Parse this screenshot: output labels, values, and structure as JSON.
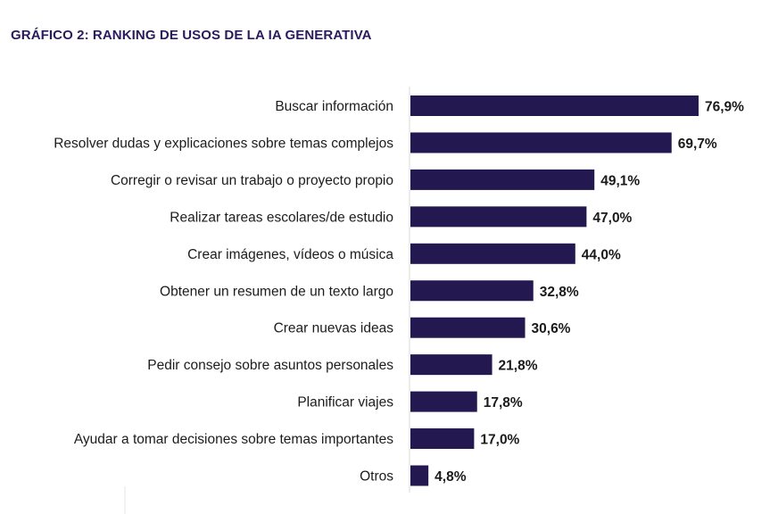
{
  "chart_data": {
    "type": "bar",
    "orientation": "horizontal",
    "title": "GRÁFICO 2: RANKING DE USOS DE LA IA GENERATIVA",
    "categories": [
      "Buscar información",
      "Resolver dudas y explicaciones sobre temas complejos",
      "Corregir o revisar un trabajo o proyecto propio",
      "Realizar tareas escolares/de estudio",
      "Crear imágenes, vídeos o música",
      "Obtener un resumen de un texto largo",
      "Crear nuevas ideas",
      "Pedir consejo sobre asuntos personales",
      "Planificar viajes",
      "Ayudar a tomar decisiones sobre temas importantes",
      "Otros"
    ],
    "values": [
      76.9,
      69.7,
      49.1,
      47.0,
      44.0,
      32.8,
      30.6,
      21.8,
      17.8,
      17.0,
      4.8
    ],
    "value_labels": [
      "76,9%",
      "69,7%",
      "49,1%",
      "47,0%",
      "44,0%",
      "32,8%",
      "30,6%",
      "21,8%",
      "17,8%",
      "17,0%",
      "4,8%"
    ],
    "xlim": [
      0,
      100
    ],
    "grid": false,
    "legend": "none",
    "colors": {
      "bar": "#231850",
      "title": "#2b1a5c",
      "axis_line": "#d9d9d9"
    }
  }
}
